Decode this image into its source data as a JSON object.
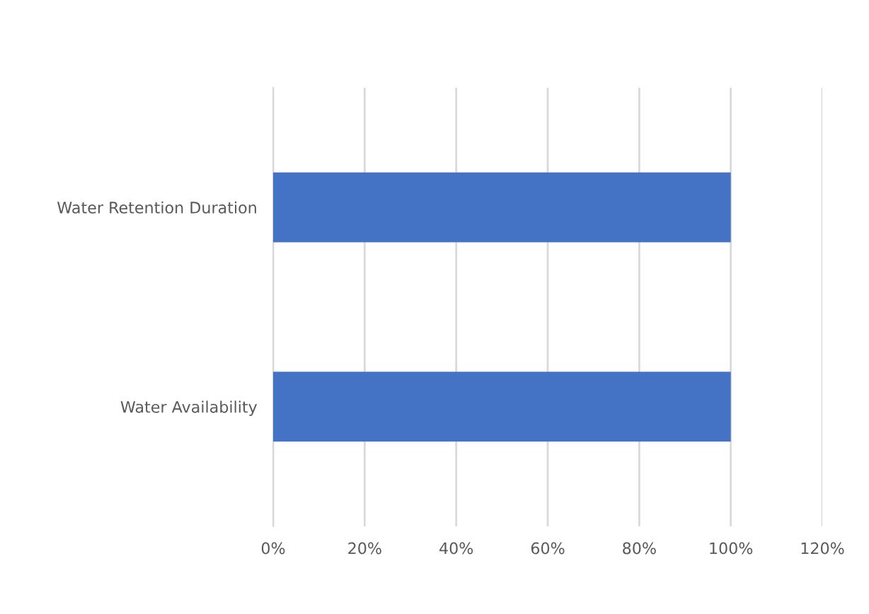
{
  "chart_data": {
    "type": "bar",
    "orientation": "horizontal",
    "categories": [
      "Water Retention Duration",
      "Water Availability"
    ],
    "values": [
      100,
      100
    ],
    "color": "#4472c4",
    "xlim": [
      0,
      120
    ],
    "xticks": [
      {
        "value": 0,
        "label": "0%"
      },
      {
        "value": 20,
        "label": "20%"
      },
      {
        "value": 40,
        "label": "40%"
      },
      {
        "value": 60,
        "label": "60%"
      },
      {
        "value": 80,
        "label": "80%"
      },
      {
        "value": 100,
        "label": "100%"
      },
      {
        "value": 120,
        "label": "120%"
      }
    ],
    "grid": "x"
  }
}
